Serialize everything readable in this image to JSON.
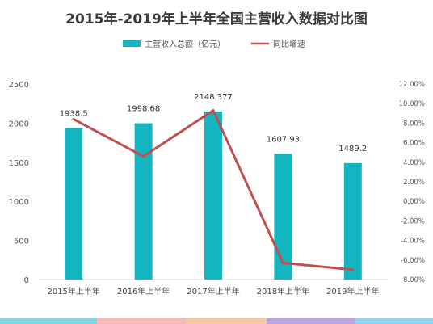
{
  "chart_data": {
    "type": "bar+line",
    "title": "2015年-2019年上半年全国主营收入数据对比图",
    "categories": [
      "2015年上半年",
      "2016年上半年",
      "2017年上半年",
      "2018年上半年",
      "2019年上半年"
    ],
    "series": [
      {
        "name": "主营收入总额（亿元）",
        "type": "bar",
        "axis": "left",
        "values": [
          1938.5,
          1998.68,
          2148.377,
          1607.93,
          1489.2
        ],
        "labels": [
          "1938.5",
          "1998.68",
          "2148.377",
          "1607.93",
          "1489.2"
        ],
        "color": "#13b5c1"
      },
      {
        "name": "同比增速",
        "type": "line",
        "axis": "right",
        "values": [
          8.4,
          4.6,
          9.3,
          -6.3,
          -7.0
        ],
        "color": "#c0504d"
      }
    ],
    "y_left": {
      "min": 0,
      "max": 2500,
      "ticks": [
        0,
        500,
        1000,
        1500,
        2000,
        2500
      ],
      "tick_labels": [
        "0",
        "500",
        "1000",
        "1500",
        "2000",
        "2500"
      ]
    },
    "y_right": {
      "min": -8,
      "max": 12,
      "ticks": [
        -8,
        -6,
        -4,
        -2,
        0,
        2,
        4,
        6,
        8,
        10,
        12
      ],
      "tick_labels": [
        "-8.00%",
        "-6.00%",
        "-4.00%",
        "-2.00%",
        "0.00%",
        "2.00%",
        "4.00%",
        "6.00%",
        "8.00%",
        "10.00%",
        "12.00%"
      ]
    },
    "grid": false,
    "legend": "top-center"
  },
  "colors": {
    "bar": "#13b5c1",
    "line": "#c0504d",
    "axis": "#d9d9d9",
    "footer_band": [
      "#7ed6e0",
      "#f5b8b8",
      "#f7c9a0",
      "#b9a3e3",
      "#8fd1f0"
    ]
  }
}
